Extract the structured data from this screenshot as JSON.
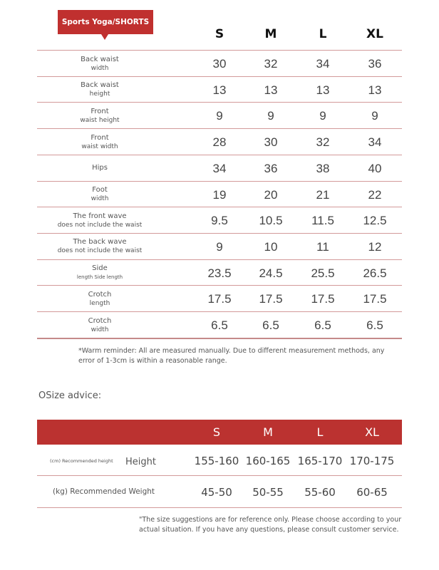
{
  "title": "Sports Yoga/SHORTS",
  "sizes": [
    "S",
    "M",
    "L",
    "XL"
  ],
  "measurements": [
    {
      "label": "Back waist",
      "sub": "width",
      "values": [
        "30",
        "32",
        "34",
        "36"
      ]
    },
    {
      "label": "Back waist",
      "sub": "height",
      "values": [
        "13",
        "13",
        "13",
        "13"
      ]
    },
    {
      "label": "Front",
      "sub": "waist height",
      "values": [
        "9",
        "9",
        "9",
        "9"
      ]
    },
    {
      "label": "Front",
      "sub": "waist width",
      "values": [
        "28",
        "30",
        "32",
        "34"
      ]
    },
    {
      "label": "Hips",
      "sub": "",
      "values": [
        "34",
        "36",
        "38",
        "40"
      ]
    },
    {
      "label": "Foot",
      "sub": "width",
      "values": [
        "19",
        "20",
        "21",
        "22"
      ]
    },
    {
      "label": "The front wave",
      "sub": "does not include the waist",
      "values": [
        "9.5",
        "10.5",
        "11.5",
        "12.5"
      ]
    },
    {
      "label": "The back wave",
      "sub": "does not include the waist",
      "values": [
        "9",
        "10",
        "11",
        "12"
      ]
    },
    {
      "label": "Side",
      "sub": "length Side length",
      "values": [
        "23.5",
        "24.5",
        "25.5",
        "26.5"
      ]
    },
    {
      "label": "Crotch",
      "sub": "length",
      "values": [
        "17.5",
        "17.5",
        "17.5",
        "17.5"
      ]
    },
    {
      "label": "Crotch",
      "sub": "width",
      "values": [
        "6.5",
        "6.5",
        "6.5",
        "6.5"
      ]
    }
  ],
  "warm_reminder": "*Warm reminder: All are measured manually. Due to different measurement methods, any error of 1-3cm is within a reasonable range.",
  "size_advice_title": "OSize advice:",
  "advice": {
    "height_small": "(cm) Recommended height",
    "height_label": "Height",
    "height_values": [
      "155-160",
      "160-165",
      "165-170",
      "170-175"
    ],
    "weight_label": "(kg) Recommended Weight",
    "weight_values": [
      "45-50",
      "50-55",
      "55-60",
      "60-65"
    ]
  },
  "footer_note": "\"The size suggestions are for reference only. Please choose according to your actual situation. If you have any questions, please consult customer service.",
  "colors": {
    "accent": "#c0302f",
    "divider": "#d39a9a"
  }
}
